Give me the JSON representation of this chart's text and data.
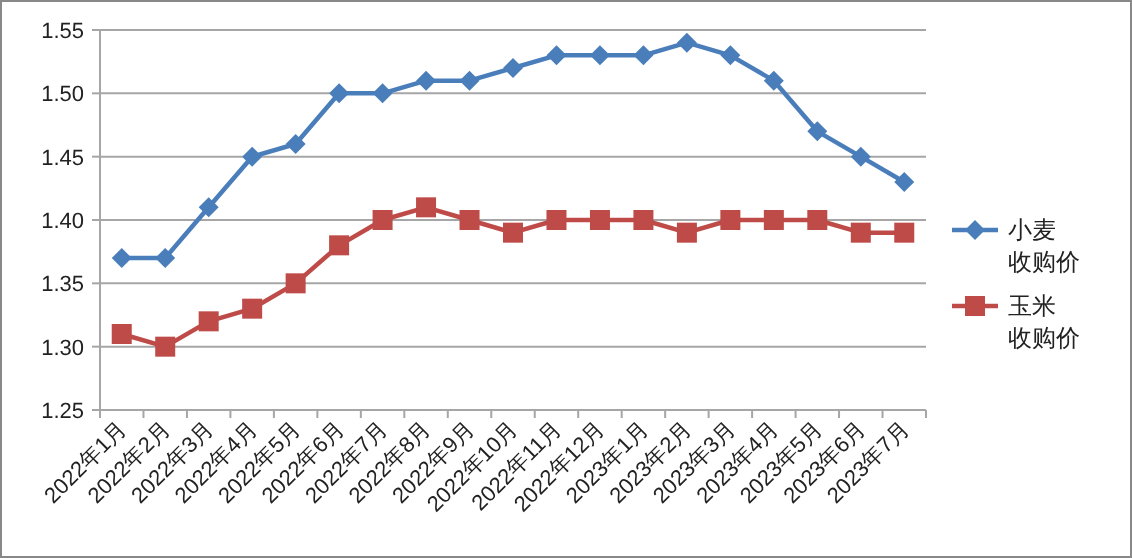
{
  "chart_data": {
    "type": "line",
    "categories": [
      "2022年1月",
      "2022年2月",
      "2022年3月",
      "2022年4月",
      "2022年5月",
      "2022年6月",
      "2022年7月",
      "2022年8月",
      "2022年9月",
      "2022年10月",
      "2022年11月",
      "2022年12月",
      "2023年1月",
      "2023年2月",
      "2023年3月",
      "2023年4月",
      "2023年5月",
      "2023年6月",
      "2023年7月"
    ],
    "series": [
      {
        "name": "小麦收购价",
        "color": "#4a7ebb",
        "marker": "diamond",
        "values": [
          1.37,
          1.37,
          1.41,
          1.45,
          1.46,
          1.5,
          1.5,
          1.51,
          1.51,
          1.52,
          1.53,
          1.53,
          1.53,
          1.54,
          1.53,
          1.51,
          1.47,
          1.45,
          1.43
        ]
      },
      {
        "name": "玉米收购价",
        "color": "#be4b48",
        "marker": "square",
        "values": [
          1.31,
          1.3,
          1.32,
          1.33,
          1.35,
          1.38,
          1.4,
          1.41,
          1.4,
          1.39,
          1.4,
          1.4,
          1.4,
          1.39,
          1.4,
          1.4,
          1.4,
          1.39,
          1.39
        ]
      }
    ],
    "ylim": [
      1.25,
      1.55
    ],
    "yticks": [
      {
        "value": 1.25,
        "label": "1.25"
      },
      {
        "value": 1.3,
        "label": "1.30"
      },
      {
        "value": 1.35,
        "label": "1.35"
      },
      {
        "value": 1.4,
        "label": "1.40"
      },
      {
        "value": 1.45,
        "label": "1.45"
      },
      {
        "value": 1.5,
        "label": "1.50"
      },
      {
        "value": 1.55,
        "label": "1.55"
      }
    ],
    "grid": "y",
    "legend": "right",
    "line_style": "solid"
  }
}
